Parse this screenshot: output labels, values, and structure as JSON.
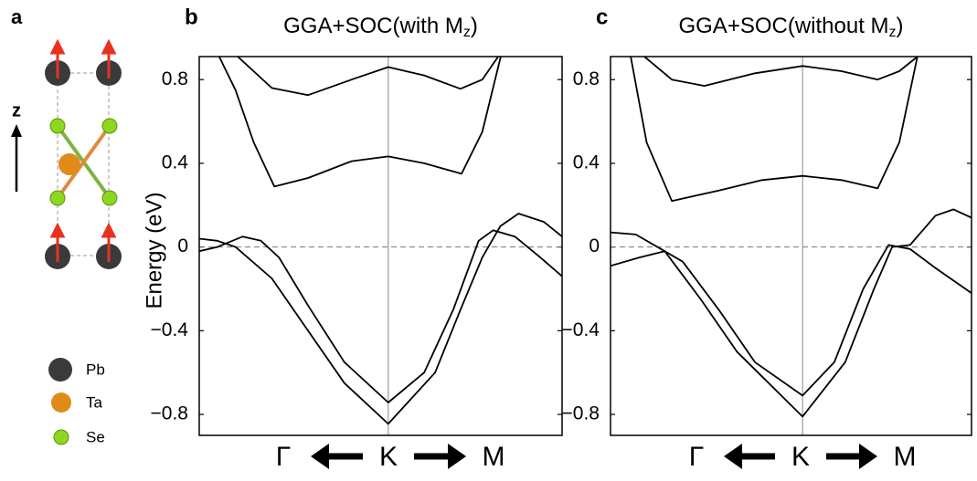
{
  "structure": {
    "label": "a",
    "axis": "z",
    "legend": [
      "Pb",
      "Ta",
      "Se"
    ]
  },
  "chart_data": [
    {
      "type": "line",
      "panel_label": "b",
      "title": "GGA+SOC(with M",
      "title_subscript": "z",
      "title_end": ")",
      "ylabel": "Energy (eV)",
      "xlabels": [
        "Γ",
        "K",
        "M"
      ],
      "xlim": [
        0,
        1
      ],
      "xticks": [
        {
          "value": 0.521,
          "label": "K"
        }
      ],
      "ylim": [
        -0.9,
        0.91
      ],
      "yticks": [
        {
          "value": -0.8,
          "label": "−0.8"
        },
        {
          "value": -0.4,
          "label": "−0.4"
        },
        0,
        0.4,
        0.8
      ],
      "zero_line": true,
      "color": "#000000",
      "series": [
        {
          "x": [
            0.106,
            0.2,
            0.3,
            0.42,
            0.521,
            0.62,
            0.72,
            0.78,
            0.824
          ],
          "values": [
            0.91,
            0.76,
            0.726,
            0.8,
            0.86,
            0.82,
            0.756,
            0.8,
            0.91
          ]
        },
        {
          "x": [
            0.055,
            0.1,
            0.15,
            0.207,
            0.3,
            0.42,
            0.521,
            0.62,
            0.723,
            0.78,
            0.831
          ],
          "values": [
            0.91,
            0.75,
            0.5,
            0.289,
            0.33,
            0.41,
            0.433,
            0.4,
            0.35,
            0.55,
            0.91
          ]
        },
        {
          "x": [
            0,
            0.05,
            0.1,
            0.2,
            0.3,
            0.4,
            0.521,
            0.65,
            0.72,
            0.78,
            0.83,
            0.88,
            0.95,
            1
          ],
          "values": [
            0.04,
            0.03,
            0.0,
            -0.15,
            -0.4,
            -0.65,
            -0.845,
            -0.6,
            -0.3,
            -0.05,
            0.1,
            0.16,
            0.12,
            0.05
          ]
        },
        {
          "x": [
            0,
            0.05,
            0.12,
            0.17,
            0.22,
            0.3,
            0.4,
            0.521,
            0.62,
            0.7,
            0.77,
            0.81,
            0.87,
            0.94,
            1
          ],
          "values": [
            -0.02,
            0.0,
            0.05,
            0.03,
            -0.05,
            -0.28,
            -0.55,
            -0.743,
            -0.6,
            -0.3,
            0.03,
            0.08,
            0.05,
            -0.05,
            -0.14
          ]
        }
      ]
    },
    {
      "type": "line",
      "panel_label": "c",
      "title": "GGA+SOC(without M",
      "title_subscript": "z",
      "title_end": ")",
      "xlabels": [
        "Γ",
        "K",
        "M"
      ],
      "xlim": [
        0,
        1
      ],
      "xticks": [
        {
          "value": 0.532,
          "label": "K"
        }
      ],
      "ylim": [
        -0.9,
        0.91
      ],
      "yticks": [
        {
          "value": -0.8,
          "label": "−0.8"
        },
        {
          "value": -0.4,
          "label": "−0.4"
        },
        0,
        0.4,
        0.8
      ],
      "zero_line": true,
      "color": "#000000",
      "series": [
        {
          "x": [
            0.094,
            0.17,
            0.26,
            0.4,
            0.532,
            0.64,
            0.74,
            0.8,
            0.85
          ],
          "values": [
            0.91,
            0.8,
            0.77,
            0.83,
            0.865,
            0.84,
            0.8,
            0.84,
            0.91
          ]
        },
        {
          "x": [
            0.056,
            0.1,
            0.17,
            0.3,
            0.42,
            0.532,
            0.64,
            0.74,
            0.8,
            0.85
          ],
          "values": [
            0.91,
            0.5,
            0.22,
            0.27,
            0.32,
            0.34,
            0.32,
            0.28,
            0.5,
            0.91
          ]
        },
        {
          "x": [
            0,
            0.07,
            0.15,
            0.25,
            0.35,
            0.532,
            0.65,
            0.73,
            0.78,
            0.83,
            0.9,
            0.95,
            1
          ],
          "values": [
            0.07,
            0.06,
            -0.02,
            -0.25,
            -0.5,
            -0.81,
            -0.55,
            -0.2,
            0.0,
            0.01,
            0.15,
            0.18,
            0.14
          ]
        },
        {
          "x": [
            0,
            0.08,
            0.15,
            0.2,
            0.3,
            0.4,
            0.532,
            0.62,
            0.7,
            0.77,
            0.83,
            0.9,
            1
          ],
          "values": [
            -0.09,
            -0.05,
            -0.02,
            -0.07,
            -0.3,
            -0.55,
            -0.71,
            -0.55,
            -0.2,
            0.01,
            -0.01,
            -0.1,
            -0.22
          ]
        }
      ]
    }
  ]
}
